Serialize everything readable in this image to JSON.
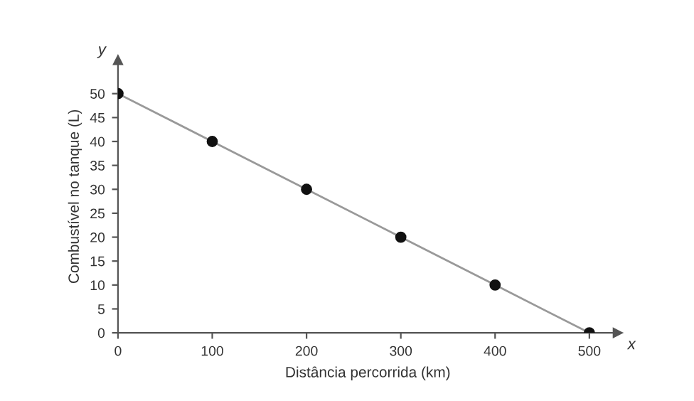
{
  "chart_data": {
    "type": "line",
    "xlabel": "Distância percorrida (km)",
    "ylabel": "Combustível no tanque (L)",
    "annotations": [
      "x",
      "y"
    ],
    "series": [
      {
        "color": "#999999",
        "marker": "none",
        "x": [
          0,
          100,
          200,
          300,
          400,
          500
        ],
        "values": [
          50,
          40,
          30,
          20,
          10,
          0
        ]
      },
      {
        "type": "scatter",
        "color": "#111111",
        "marker": "circle",
        "x": [
          0,
          100,
          200,
          300,
          400,
          500
        ],
        "values": [
          50,
          40,
          30,
          20,
          10,
          0
        ]
      }
    ],
    "xlim": [
      0,
      530
    ],
    "ylim": [
      0,
      57
    ],
    "xticks": [
      0,
      100,
      200,
      300,
      400,
      500
    ],
    "yticks": [
      0,
      5,
      10,
      15,
      20,
      25,
      30,
      35,
      40,
      45,
      50
    ],
    "grid": false,
    "legend": false
  }
}
